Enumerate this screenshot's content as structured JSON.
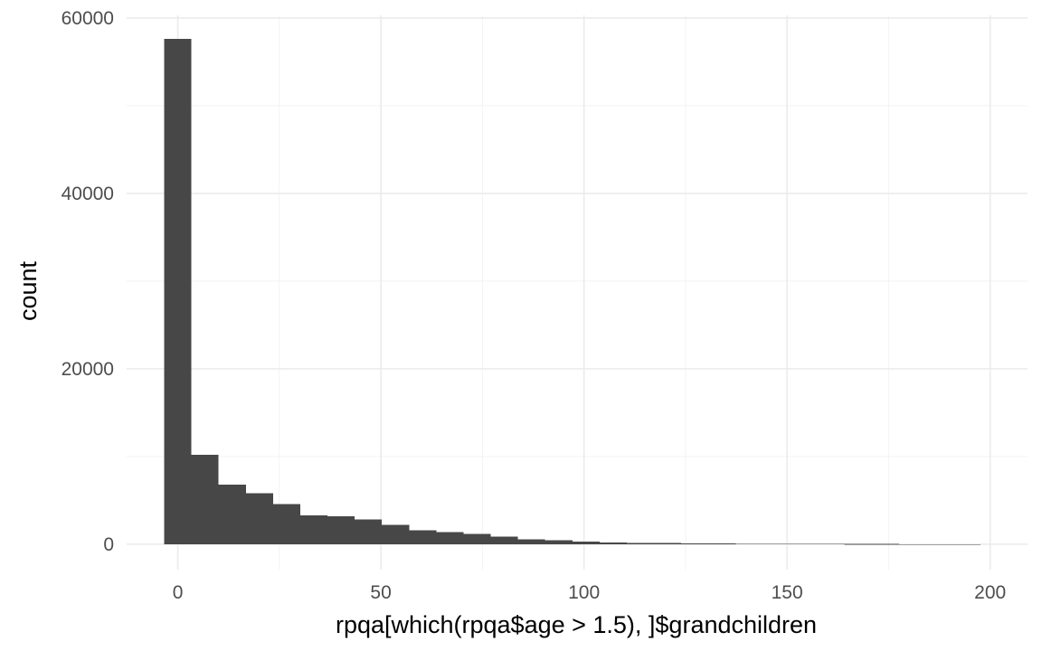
{
  "chart_data": {
    "type": "bar",
    "subtype": "histogram",
    "title": "",
    "xlabel": "rpqa[which(rpqa$age > 1.5), ]$grandchildren",
    "ylabel": "count",
    "xlim": [
      -12.6,
      209.2
    ],
    "ylim": [
      -2900,
      60300
    ],
    "x_ticks": [
      0,
      50,
      100,
      150,
      200
    ],
    "x_tick_labels": [
      "0",
      "50",
      "100",
      "150",
      "200"
    ],
    "y_ticks": [
      0,
      20000,
      40000,
      60000
    ],
    "y_tick_labels": [
      "0",
      "20000",
      "40000",
      "60000"
    ],
    "bin_width": 6.7,
    "bins": [
      {
        "x": 0.0,
        "count": 57600
      },
      {
        "x": 6.7,
        "count": 10200
      },
      {
        "x": 13.4,
        "count": 6800
      },
      {
        "x": 20.1,
        "count": 5800
      },
      {
        "x": 26.8,
        "count": 4600
      },
      {
        "x": 33.5,
        "count": 3300
      },
      {
        "x": 40.2,
        "count": 3200
      },
      {
        "x": 46.9,
        "count": 2800
      },
      {
        "x": 53.6,
        "count": 2200
      },
      {
        "x": 60.3,
        "count": 1600
      },
      {
        "x": 67.0,
        "count": 1400
      },
      {
        "x": 73.7,
        "count": 1150
      },
      {
        "x": 80.4,
        "count": 850
      },
      {
        "x": 87.1,
        "count": 550
      },
      {
        "x": 93.8,
        "count": 450
      },
      {
        "x": 100.5,
        "count": 300
      },
      {
        "x": 107.2,
        "count": 200
      },
      {
        "x": 113.9,
        "count": 150
      },
      {
        "x": 120.6,
        "count": 120
      },
      {
        "x": 127.3,
        "count": 90
      },
      {
        "x": 134.0,
        "count": 70
      },
      {
        "x": 140.7,
        "count": 50
      },
      {
        "x": 147.4,
        "count": 40
      },
      {
        "x": 154.1,
        "count": 30
      },
      {
        "x": 160.8,
        "count": 25
      },
      {
        "x": 167.5,
        "count": 20
      },
      {
        "x": 174.2,
        "count": 15
      },
      {
        "x": 180.9,
        "count": 12
      },
      {
        "x": 187.6,
        "count": 10
      },
      {
        "x": 194.3,
        "count": 8
      }
    ],
    "bar_color": "#474747",
    "grid": true,
    "legend": "none"
  }
}
